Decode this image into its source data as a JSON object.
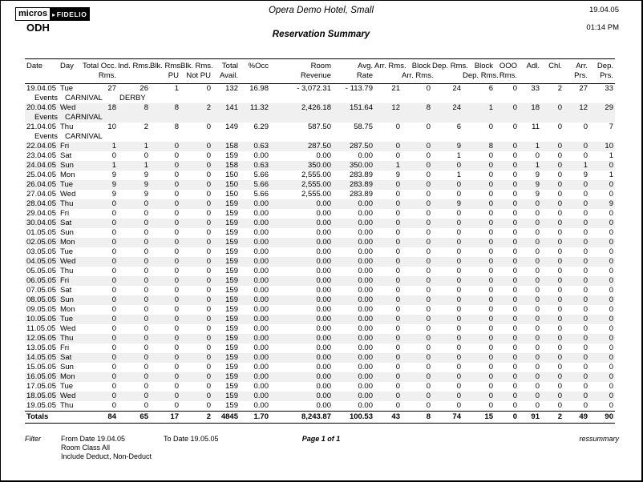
{
  "page": {
    "logo_micros": "micros",
    "logo_arrow": "▸",
    "logo_fidelio": "FIDELIO",
    "hotel_code": "ODH",
    "title": "Opera Demo Hotel, Small",
    "subtitle": "Reservation Summary",
    "date": "19.04.05",
    "time": "01:14 PM"
  },
  "table": {
    "events_label": "Events",
    "headers": [
      [
        "Date",
        ""
      ],
      [
        "Day",
        ""
      ],
      [
        "Total Occ.",
        "Rms."
      ],
      [
        "Ind. Rms.",
        ""
      ],
      [
        "Blk. Rms.",
        "PU"
      ],
      [
        "Blk. Rms.",
        "Not PU"
      ],
      [
        "Total",
        "Avail."
      ],
      [
        "%Occ",
        ""
      ],
      [
        "Room",
        "Revenue"
      ],
      [
        "Avg.",
        "Rate"
      ],
      [
        "Arr. Rms.",
        ""
      ],
      [
        "Block",
        "Arr. Rms."
      ],
      [
        "Dep. Rms.",
        ""
      ],
      [
        "Block",
        "Dep. Rms."
      ],
      [
        "OOO",
        "Rms."
      ],
      [
        "Adl.",
        ""
      ],
      [
        "Chl.",
        ""
      ],
      [
        "Arr.",
        "Prs."
      ],
      [
        "Dep.",
        "Prs."
      ]
    ],
    "rows": [
      {
        "date": "19.04.05",
        "day": "Tue",
        "shaded": false,
        "events": [
          "CARNIVAL",
          "DERBY"
        ],
        "values": [
          "27",
          "26",
          "1",
          "0",
          "132",
          "16.98",
          "- 3,072.31",
          "- 113.79",
          "21",
          "0",
          "24",
          "6",
          "0",
          "33",
          "2",
          "27",
          "33"
        ]
      },
      {
        "date": "20.04.05",
        "day": "Wed",
        "shaded": true,
        "events": [
          "CARNIVAL"
        ],
        "values": [
          "18",
          "8",
          "8",
          "2",
          "141",
          "11.32",
          "2,426.18",
          "151.64",
          "12",
          "8",
          "24",
          "1",
          "0",
          "18",
          "0",
          "12",
          "29"
        ]
      },
      {
        "date": "21.04.05",
        "day": "Thu",
        "shaded": false,
        "events": [
          "CARNIVAL"
        ],
        "values": [
          "10",
          "2",
          "8",
          "0",
          "149",
          "6.29",
          "587.50",
          "58.75",
          "0",
          "0",
          "6",
          "0",
          "0",
          "11",
          "0",
          "0",
          "7"
        ]
      },
      {
        "date": "22.04.05",
        "day": "Fri",
        "shaded": true,
        "values": [
          "1",
          "1",
          "0",
          "0",
          "158",
          "0.63",
          "287.50",
          "287.50",
          "0",
          "0",
          "9",
          "8",
          "0",
          "1",
          "0",
          "0",
          "10"
        ]
      },
      {
        "date": "23.04.05",
        "day": "Sat",
        "shaded": false,
        "values": [
          "0",
          "0",
          "0",
          "0",
          "159",
          "0.00",
          "0.00",
          "0.00",
          "0",
          "0",
          "1",
          "0",
          "0",
          "0",
          "0",
          "0",
          "1"
        ]
      },
      {
        "date": "24.04.05",
        "day": "Sun",
        "shaded": true,
        "values": [
          "1",
          "1",
          "0",
          "0",
          "158",
          "0.63",
          "350.00",
          "350.00",
          "1",
          "0",
          "0",
          "0",
          "0",
          "1",
          "0",
          "1",
          "0"
        ]
      },
      {
        "date": "25.04.05",
        "day": "Mon",
        "shaded": false,
        "values": [
          "9",
          "9",
          "0",
          "0",
          "150",
          "5.66",
          "2,555.00",
          "283.89",
          "9",
          "0",
          "1",
          "0",
          "0",
          "9",
          "0",
          "9",
          "1"
        ]
      },
      {
        "date": "26.04.05",
        "day": "Tue",
        "shaded": true,
        "values": [
          "9",
          "9",
          "0",
          "0",
          "150",
          "5.66",
          "2,555.00",
          "283.89",
          "0",
          "0",
          "0",
          "0",
          "0",
          "9",
          "0",
          "0",
          "0"
        ]
      },
      {
        "date": "27.04.05",
        "day": "Wed",
        "shaded": false,
        "values": [
          "9",
          "9",
          "0",
          "0",
          "150",
          "5.66",
          "2,555.00",
          "283.89",
          "0",
          "0",
          "0",
          "0",
          "0",
          "9",
          "0",
          "0",
          "0"
        ]
      },
      {
        "date": "28.04.05",
        "day": "Thu",
        "shaded": true,
        "values": [
          "0",
          "0",
          "0",
          "0",
          "159",
          "0.00",
          "0.00",
          "0.00",
          "0",
          "0",
          "9",
          "0",
          "0",
          "0",
          "0",
          "0",
          "9"
        ]
      },
      {
        "date": "29.04.05",
        "day": "Fri",
        "shaded": false,
        "values": [
          "0",
          "0",
          "0",
          "0",
          "159",
          "0.00",
          "0.00",
          "0.00",
          "0",
          "0",
          "0",
          "0",
          "0",
          "0",
          "0",
          "0",
          "0"
        ]
      },
      {
        "date": "30.04.05",
        "day": "Sat",
        "shaded": true,
        "values": [
          "0",
          "0",
          "0",
          "0",
          "159",
          "0.00",
          "0.00",
          "0.00",
          "0",
          "0",
          "0",
          "0",
          "0",
          "0",
          "0",
          "0",
          "0"
        ]
      },
      {
        "date": "01.05.05",
        "day": "Sun",
        "shaded": false,
        "values": [
          "0",
          "0",
          "0",
          "0",
          "159",
          "0.00",
          "0.00",
          "0.00",
          "0",
          "0",
          "0",
          "0",
          "0",
          "0",
          "0",
          "0",
          "0"
        ]
      },
      {
        "date": "02.05.05",
        "day": "Mon",
        "shaded": true,
        "values": [
          "0",
          "0",
          "0",
          "0",
          "159",
          "0.00",
          "0.00",
          "0.00",
          "0",
          "0",
          "0",
          "0",
          "0",
          "0",
          "0",
          "0",
          "0"
        ]
      },
      {
        "date": "03.05.05",
        "day": "Tue",
        "shaded": false,
        "values": [
          "0",
          "0",
          "0",
          "0",
          "159",
          "0.00",
          "0.00",
          "0.00",
          "0",
          "0",
          "0",
          "0",
          "0",
          "0",
          "0",
          "0",
          "0"
        ]
      },
      {
        "date": "04.05.05",
        "day": "Wed",
        "shaded": true,
        "values": [
          "0",
          "0",
          "0",
          "0",
          "159",
          "0.00",
          "0.00",
          "0.00",
          "0",
          "0",
          "0",
          "0",
          "0",
          "0",
          "0",
          "0",
          "0"
        ]
      },
      {
        "date": "05.05.05",
        "day": "Thu",
        "shaded": false,
        "values": [
          "0",
          "0",
          "0",
          "0",
          "159",
          "0.00",
          "0.00",
          "0.00",
          "0",
          "0",
          "0",
          "0",
          "0",
          "0",
          "0",
          "0",
          "0"
        ]
      },
      {
        "date": "06.05.05",
        "day": "Fri",
        "shaded": true,
        "values": [
          "0",
          "0",
          "0",
          "0",
          "159",
          "0.00",
          "0.00",
          "0.00",
          "0",
          "0",
          "0",
          "0",
          "0",
          "0",
          "0",
          "0",
          "0"
        ]
      },
      {
        "date": "07.05.05",
        "day": "Sat",
        "shaded": false,
        "values": [
          "0",
          "0",
          "0",
          "0",
          "159",
          "0.00",
          "0.00",
          "0.00",
          "0",
          "0",
          "0",
          "0",
          "0",
          "0",
          "0",
          "0",
          "0"
        ]
      },
      {
        "date": "08.05.05",
        "day": "Sun",
        "shaded": true,
        "values": [
          "0",
          "0",
          "0",
          "0",
          "159",
          "0.00",
          "0.00",
          "0.00",
          "0",
          "0",
          "0",
          "0",
          "0",
          "0",
          "0",
          "0",
          "0"
        ]
      },
      {
        "date": "09.05.05",
        "day": "Mon",
        "shaded": false,
        "values": [
          "0",
          "0",
          "0",
          "0",
          "159",
          "0.00",
          "0.00",
          "0.00",
          "0",
          "0",
          "0",
          "0",
          "0",
          "0",
          "0",
          "0",
          "0"
        ]
      },
      {
        "date": "10.05.05",
        "day": "Tue",
        "shaded": true,
        "values": [
          "0",
          "0",
          "0",
          "0",
          "159",
          "0.00",
          "0.00",
          "0.00",
          "0",
          "0",
          "0",
          "0",
          "0",
          "0",
          "0",
          "0",
          "0"
        ]
      },
      {
        "date": "11.05.05",
        "day": "Wed",
        "shaded": false,
        "values": [
          "0",
          "0",
          "0",
          "0",
          "159",
          "0.00",
          "0.00",
          "0.00",
          "0",
          "0",
          "0",
          "0",
          "0",
          "0",
          "0",
          "0",
          "0"
        ]
      },
      {
        "date": "12.05.05",
        "day": "Thu",
        "shaded": true,
        "values": [
          "0",
          "0",
          "0",
          "0",
          "159",
          "0.00",
          "0.00",
          "0.00",
          "0",
          "0",
          "0",
          "0",
          "0",
          "0",
          "0",
          "0",
          "0"
        ]
      },
      {
        "date": "13.05.05",
        "day": "Fri",
        "shaded": false,
        "values": [
          "0",
          "0",
          "0",
          "0",
          "159",
          "0.00",
          "0.00",
          "0.00",
          "0",
          "0",
          "0",
          "0",
          "0",
          "0",
          "0",
          "0",
          "0"
        ]
      },
      {
        "date": "14.05.05",
        "day": "Sat",
        "shaded": true,
        "values": [
          "0",
          "0",
          "0",
          "0",
          "159",
          "0.00",
          "0.00",
          "0.00",
          "0",
          "0",
          "0",
          "0",
          "0",
          "0",
          "0",
          "0",
          "0"
        ]
      },
      {
        "date": "15.05.05",
        "day": "Sun",
        "shaded": false,
        "values": [
          "0",
          "0",
          "0",
          "0",
          "159",
          "0.00",
          "0.00",
          "0.00",
          "0",
          "0",
          "0",
          "0",
          "0",
          "0",
          "0",
          "0",
          "0"
        ]
      },
      {
        "date": "16.05.05",
        "day": "Mon",
        "shaded": true,
        "values": [
          "0",
          "0",
          "0",
          "0",
          "159",
          "0.00",
          "0.00",
          "0.00",
          "0",
          "0",
          "0",
          "0",
          "0",
          "0",
          "0",
          "0",
          "0"
        ]
      },
      {
        "date": "17.05.05",
        "day": "Tue",
        "shaded": false,
        "values": [
          "0",
          "0",
          "0",
          "0",
          "159",
          "0.00",
          "0.00",
          "0.00",
          "0",
          "0",
          "0",
          "0",
          "0",
          "0",
          "0",
          "0",
          "0"
        ]
      },
      {
        "date": "18.05.05",
        "day": "Wed",
        "shaded": true,
        "values": [
          "0",
          "0",
          "0",
          "0",
          "159",
          "0.00",
          "0.00",
          "0.00",
          "0",
          "0",
          "0",
          "0",
          "0",
          "0",
          "0",
          "0",
          "0"
        ]
      },
      {
        "date": "19.05.05",
        "day": "Thu",
        "shaded": false,
        "values": [
          "0",
          "0",
          "0",
          "0",
          "159",
          "0.00",
          "0.00",
          "0.00",
          "0",
          "0",
          "0",
          "0",
          "0",
          "0",
          "0",
          "0",
          "0"
        ]
      }
    ],
    "totals": {
      "label": "Totals",
      "values": [
        "84",
        "65",
        "17",
        "2",
        "4845",
        "1.70",
        "8,243.87",
        "100.53",
        "43",
        "8",
        "74",
        "15",
        "0",
        "91",
        "2",
        "49",
        "90"
      ]
    }
  },
  "footer": {
    "filter_label": "Filter",
    "from_date": "From Date 19.04.05",
    "to_date": "To Date 19.05.05",
    "room_class": "Room Class All",
    "include": "Include Deduct, Non-Deduct",
    "page_label": "Page 1 of 1",
    "report_id": "ressummary"
  }
}
